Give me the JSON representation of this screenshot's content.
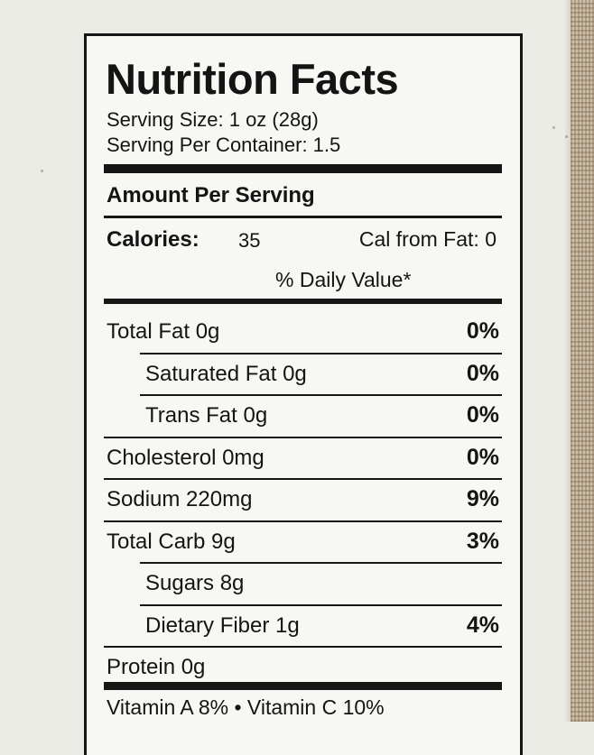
{
  "label": {
    "title": "Nutrition Facts",
    "serving_size": "Serving Size: 1 oz (28g)",
    "servings_per_container": "Serving Per Container: 1.5",
    "amount_per_serving": "Amount Per Serving",
    "calories_label": "Calories:",
    "calories_value": "35",
    "cal_from_fat": "Cal from Fat: 0",
    "daily_value_header": "% Daily Value*",
    "nutrients": [
      {
        "label": "Total Fat  0g",
        "pct": "0%",
        "indent": false
      },
      {
        "label": "Saturated Fat 0g",
        "pct": "0%",
        "indent": true
      },
      {
        "label": "Trans Fat 0g",
        "pct": "0%",
        "indent": true
      },
      {
        "label": "Cholesterol 0mg",
        "pct": "0%",
        "indent": false
      },
      {
        "label": "Sodium 220mg",
        "pct": "9%",
        "indent": false
      },
      {
        "label": "Total Carb 9g",
        "pct": "3%",
        "indent": false
      },
      {
        "label": "Sugars 8g",
        "pct": "",
        "indent": true
      },
      {
        "label": "Dietary Fiber 1g",
        "pct": "4%",
        "indent": true
      },
      {
        "label": "Protein 0g",
        "pct": "",
        "indent": false
      }
    ],
    "vitamins": "Vitamin A 8%  •  Vitamin C 10%"
  }
}
